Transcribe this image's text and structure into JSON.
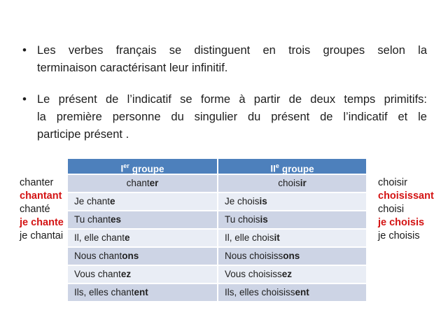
{
  "slide": {
    "bullet_char": "•",
    "bullets": [
      {
        "lines": [
          "Les verbes français se distinguent en trois groupes selon la",
          "terminaison caractérisant leur infinitif."
        ]
      },
      {
        "lines": [
          "Le présent de l’indicatif se forme à partir de deux temps primitifs:",
          "la première personne du singulier du présent de l’indicatif et le",
          "participe présent ."
        ]
      }
    ]
  },
  "table": {
    "headers": [
      {
        "base": "I",
        "sup": "er",
        "rest": "groupe"
      },
      {
        "base": "II",
        "sup": "e",
        "rest": "groupe"
      }
    ],
    "rows": [
      {
        "centered": true,
        "left": {
          "pre": "chant",
          "bold": "er"
        },
        "right": {
          "pre": "chois",
          "bold": "ir"
        }
      },
      {
        "centered": false,
        "left": {
          "pre": "Je chant",
          "bold": "e"
        },
        "right": {
          "pre": "Je chois",
          "bold": "is"
        }
      },
      {
        "centered": false,
        "left": {
          "pre": "Tu chant",
          "bold": "es"
        },
        "right": {
          "pre": "Tu chois",
          "bold": "is"
        }
      },
      {
        "centered": false,
        "left": {
          "pre": "Il, elle chant",
          "bold": "e"
        },
        "right": {
          "pre": "Il, elle chois",
          "bold": "it"
        }
      },
      {
        "centered": false,
        "left": {
          "pre": "Nous chant",
          "bold": "ons"
        },
        "right": {
          "pre": "Nous choisiss",
          "bold": "ons"
        }
      },
      {
        "centered": false,
        "left": {
          "pre": "Vous chant",
          "bold": "ez"
        },
        "right": {
          "pre": "Vous choisiss",
          "bold": "ez"
        }
      },
      {
        "centered": false,
        "left": {
          "pre": "Ils, elles chant",
          "bold": "ent"
        },
        "right": {
          "pre": "Ils, elles choisiss",
          "bold": "ent"
        }
      }
    ]
  },
  "left_list": [
    {
      "text": "chanter",
      "red": false
    },
    {
      "text": "chantant",
      "red": true
    },
    {
      "text": "chanté",
      "red": false
    },
    {
      "text": "je chante",
      "red": true
    },
    {
      "text": "je chantai",
      "red": false
    }
  ],
  "right_list": [
    {
      "text": "choisir",
      "red": false
    },
    {
      "text": "choisissant",
      "red": true
    },
    {
      "text": "choisi",
      "red": false
    },
    {
      "text": "je choisis",
      "red": true
    },
    {
      "text": "je choisis",
      "red": false
    }
  ],
  "colors": {
    "header_blue": "#4d80bc",
    "band_row": "#cdd4e5",
    "light_row": "#e9edf5",
    "red": "#d41414",
    "text": "#1d1d1d",
    "header_text": "#ffffff"
  }
}
